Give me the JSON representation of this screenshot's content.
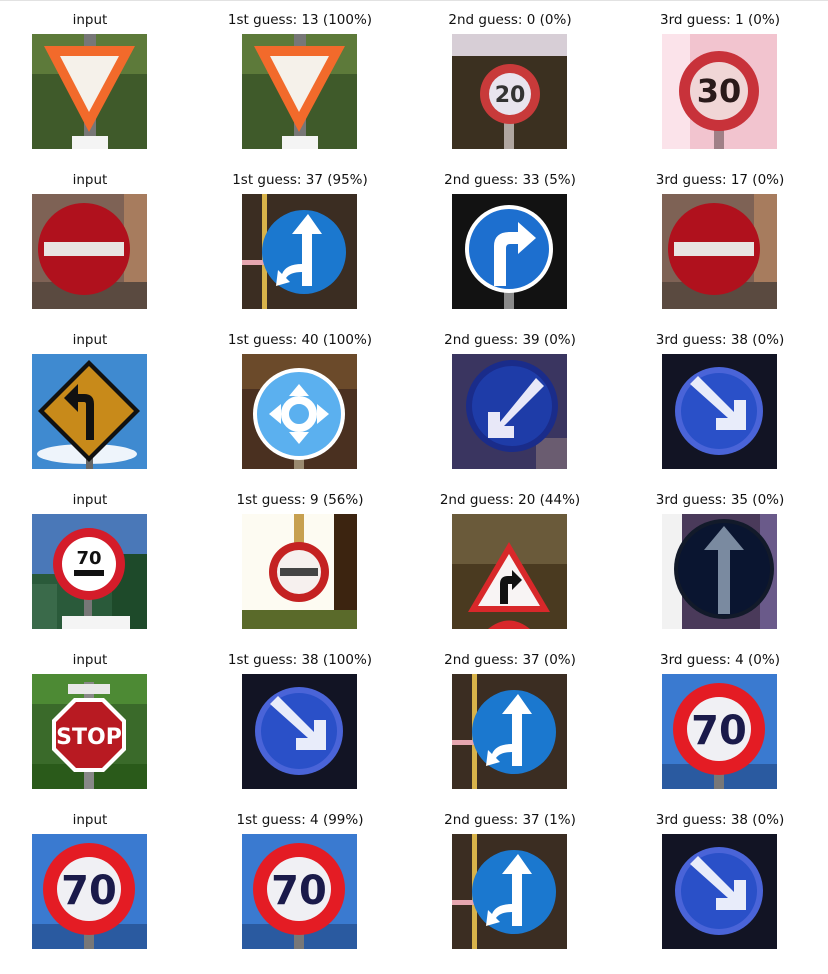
{
  "rows": [
    {
      "input": {
        "label": "input",
        "icon": "yield-sign-icon"
      },
      "guesses": [
        {
          "label": "1st guess: 13 (100%)",
          "icon": "yield-sign-icon"
        },
        {
          "label": "2nd guess: 0 (0%)",
          "icon": "speed-limit-20-icon"
        },
        {
          "label": "3rd guess: 1 (0%)",
          "icon": "speed-limit-30-icon"
        }
      ]
    },
    {
      "input": {
        "label": "input",
        "icon": "no-entry-sign-icon"
      },
      "guesses": [
        {
          "label": "1st guess: 37 (95%)",
          "icon": "go-straight-or-left-icon"
        },
        {
          "label": "2nd guess: 33 (5%)",
          "icon": "turn-right-ahead-icon"
        },
        {
          "label": "3rd guess: 17 (0%)",
          "icon": "no-entry-sign-icon"
        }
      ]
    },
    {
      "input": {
        "label": "input",
        "icon": "curve-left-warning-icon"
      },
      "guesses": [
        {
          "label": "1st guess: 40 (100%)",
          "icon": "roundabout-icon"
        },
        {
          "label": "2nd guess: 39 (0%)",
          "icon": "keep-left-icon"
        },
        {
          "label": "3rd guess: 38 (0%)",
          "icon": "keep-right-icon"
        }
      ]
    },
    {
      "input": {
        "label": "input",
        "icon": "speed-limit-70-zone-icon"
      },
      "guesses": [
        {
          "label": "1st guess: 9 (56%)",
          "icon": "no-passing-icon"
        },
        {
          "label": "2nd guess: 20 (44%)",
          "icon": "dangerous-curve-right-icon"
        },
        {
          "label": "3rd guess: 35 (0%)",
          "icon": "ahead-only-icon"
        }
      ]
    },
    {
      "input": {
        "label": "input",
        "icon": "stop-sign-icon"
      },
      "guesses": [
        {
          "label": "1st guess: 38 (100%)",
          "icon": "keep-right-icon"
        },
        {
          "label": "2nd guess: 37 (0%)",
          "icon": "go-straight-or-left-icon"
        },
        {
          "label": "3rd guess: 4 (0%)",
          "icon": "speed-limit-70-icon"
        }
      ]
    },
    {
      "input": {
        "label": "input",
        "icon": "speed-limit-70-icon"
      },
      "guesses": [
        {
          "label": "1st guess: 4 (99%)",
          "icon": "speed-limit-70-icon"
        },
        {
          "label": "2nd guess: 37 (1%)",
          "icon": "go-straight-or-left-icon"
        },
        {
          "label": "3rd guess: 38 (0%)",
          "icon": "keep-right-icon"
        }
      ]
    }
  ]
}
